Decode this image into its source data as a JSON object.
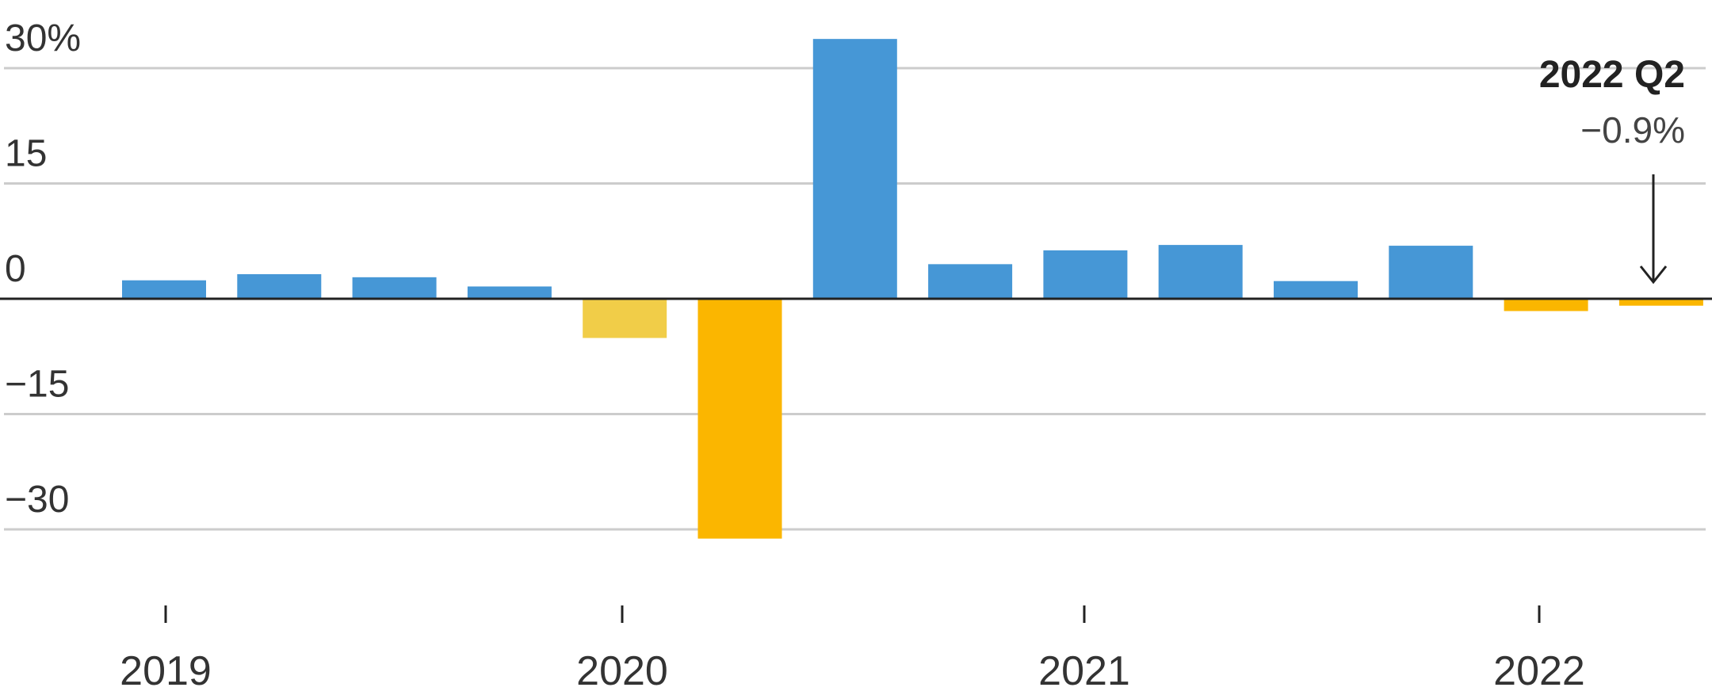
{
  "chart_data": {
    "type": "bar",
    "title": "",
    "xlabel": "",
    "ylabel": "",
    "ylim": [
      -37,
      34
    ],
    "y_ticks": [
      {
        "value": 30,
        "label": "30%"
      },
      {
        "value": 15,
        "label": "15"
      },
      {
        "value": 0,
        "label": "0"
      },
      {
        "value": -15,
        "label": "−15"
      },
      {
        "value": -30,
        "label": "−30"
      }
    ],
    "x_ticks": [
      "2019",
      "2020",
      "2021",
      "2022"
    ],
    "grid": true,
    "categories": [
      "2019 Q1",
      "2019 Q2",
      "2019 Q3",
      "2019 Q4",
      "2020 Q1",
      "2020 Q2",
      "2020 Q3",
      "2020 Q4",
      "2021 Q1",
      "2021 Q2",
      "2021 Q3",
      "2021 Q4",
      "2022 Q1",
      "2022 Q2"
    ],
    "values": [
      2.4,
      3.2,
      2.8,
      1.6,
      -5.1,
      -31.2,
      33.8,
      4.5,
      6.3,
      7.0,
      2.3,
      6.9,
      -1.6,
      -0.9
    ],
    "colors": {
      "positive": "#4697D6",
      "negative": "#FBB600",
      "negative_light": "#F1CD48",
      "grid": "#CCCCCC",
      "axis": "#222222",
      "text": "#333333"
    },
    "annotation": {
      "title": "2022 Q2",
      "value": "−0.9%"
    }
  }
}
